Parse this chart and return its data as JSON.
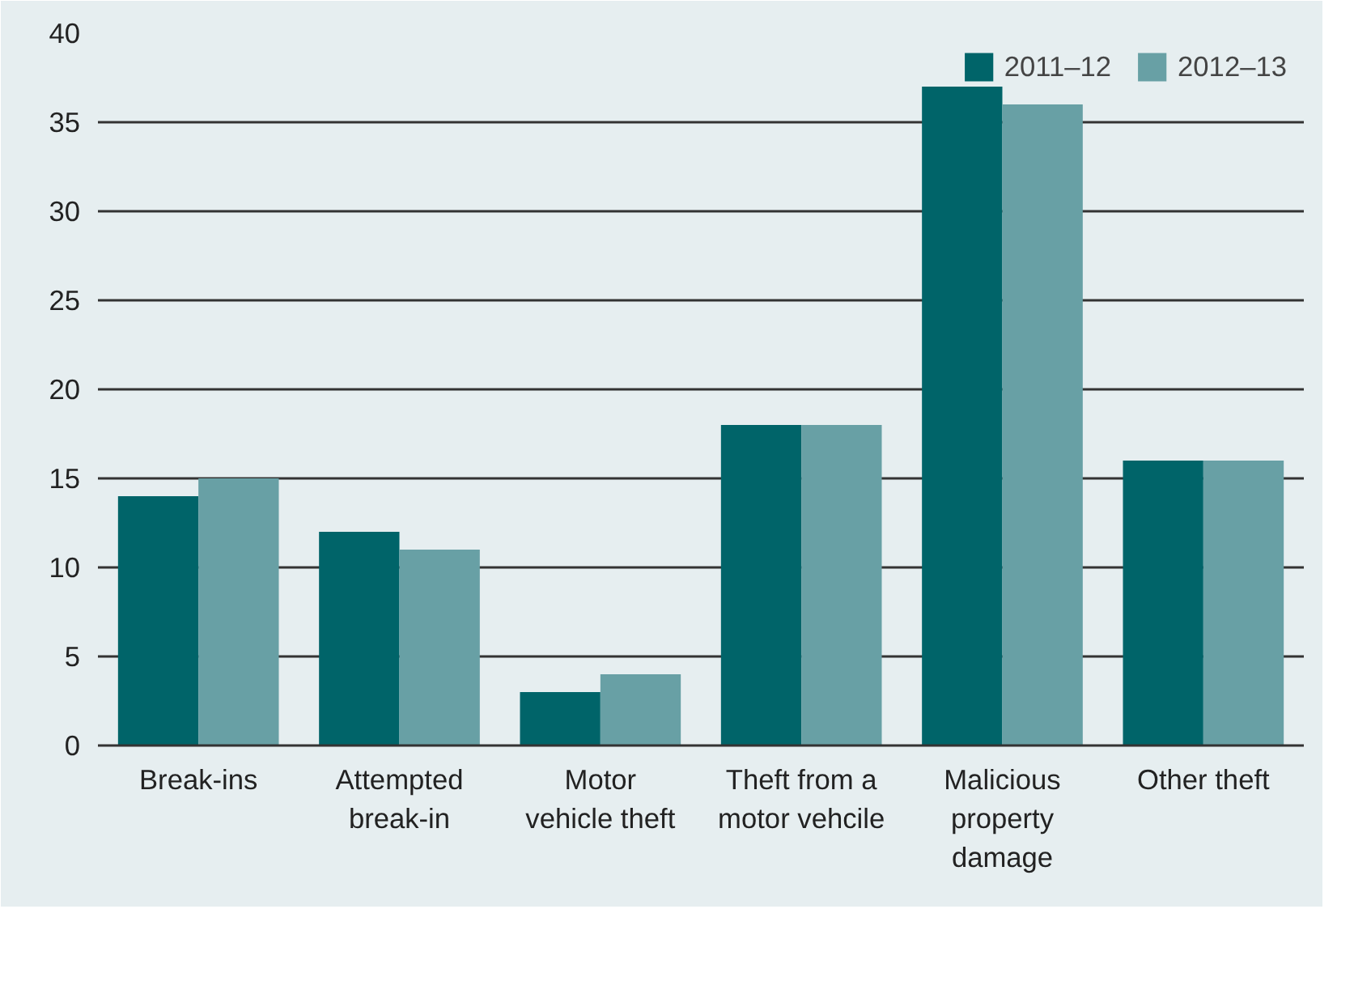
{
  "chart_data": {
    "type": "bar",
    "categories": [
      "Break-ins",
      "Attempted\nbreak-in",
      "Motor\nvehicle theft",
      "Theft from a\nmotor vehcile",
      "Malicious\nproperty\ndamage",
      "Other theft"
    ],
    "series": [
      {
        "name": "2011–12",
        "color": "#006469",
        "values": [
          14,
          12,
          3,
          18,
          37,
          16
        ]
      },
      {
        "name": "2012–13",
        "color": "#68a0a5",
        "values": [
          15,
          11,
          4,
          18,
          36,
          16
        ]
      }
    ],
    "ylim": [
      0,
      40
    ],
    "yticks": [
      0,
      5,
      10,
      15,
      20,
      25,
      30,
      35,
      40
    ],
    "grid": "y",
    "legend": "top right"
  }
}
